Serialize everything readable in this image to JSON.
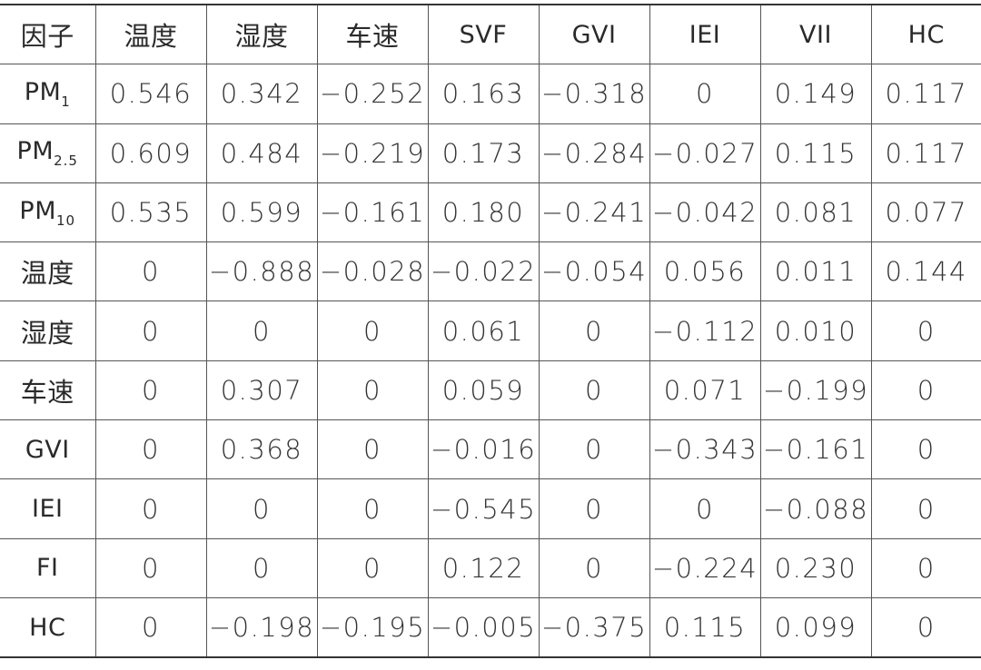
{
  "table": {
    "headers": [
      "因子",
      "温度",
      "湿度",
      "车速",
      "SVF",
      "GVI",
      "IEI",
      "VII",
      "HC"
    ],
    "rows": [
      {
        "factor_base": "PM",
        "factor_sub": "1",
        "values": [
          "0.546",
          "0.342",
          "−0.252",
          "0.163",
          "−0.318",
          "0",
          "0.149",
          "0.117"
        ]
      },
      {
        "factor_base": "PM",
        "factor_sub": "2.5",
        "values": [
          "0.609",
          "0.484",
          "−0.219",
          "0.173",
          "−0.284",
          "−0.027",
          "0.115",
          "0.117"
        ]
      },
      {
        "factor_base": "PM",
        "factor_sub": "10",
        "values": [
          "0.535",
          "0.599",
          "−0.161",
          "0.180",
          "−0.241",
          "−0.042",
          "0.081",
          "0.077"
        ]
      },
      {
        "factor_base": "温度",
        "factor_sub": "",
        "values": [
          "0",
          "−0.888",
          "−0.028",
          "−0.022",
          "−0.054",
          "0.056",
          "0.011",
          "0.144"
        ]
      },
      {
        "factor_base": "湿度",
        "factor_sub": "",
        "values": [
          "0",
          "0",
          "0",
          "0.061",
          "0",
          "−0.112",
          "0.010",
          "0"
        ]
      },
      {
        "factor_base": "车速",
        "factor_sub": "",
        "values": [
          "0",
          "0.307",
          "0",
          "0.059",
          "0",
          "0.071",
          "−0.199",
          "0"
        ]
      },
      {
        "factor_base": "GVI",
        "factor_sub": "",
        "values": [
          "0",
          "0.368",
          "0",
          "−0.016",
          "0",
          "−0.343",
          "−0.161",
          "0"
        ]
      },
      {
        "factor_base": "IEI",
        "factor_sub": "",
        "values": [
          "0",
          "0",
          "0",
          "−0.545",
          "0",
          "0",
          "−0.088",
          "0"
        ]
      },
      {
        "factor_base": "FI",
        "factor_sub": "",
        "values": [
          "0",
          "0",
          "0",
          "0.122",
          "0",
          "−0.224",
          "0.230",
          "0"
        ]
      },
      {
        "factor_base": "HC",
        "factor_sub": "",
        "values": [
          "0",
          "−0.198",
          "−0.195",
          "−0.005",
          "−0.375",
          "0.115",
          "0.099",
          "0"
        ]
      }
    ]
  }
}
